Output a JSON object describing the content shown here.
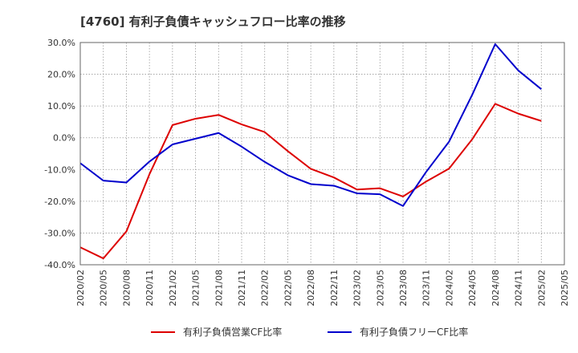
{
  "chart_data": {
    "type": "line",
    "title": "[4760]  有利子負債キャッシュフロー比率の推移",
    "xlabel": "",
    "ylabel": "",
    "ylim": [
      -40,
      30
    ],
    "y_ticks": [
      "30.0%",
      "20.0%",
      "10.0%",
      "0.0%",
      "-10.0%",
      "-20.0%",
      "-30.0%",
      "-40.0%"
    ],
    "x": [
      "2020/02",
      "2020/05",
      "2020/08",
      "2020/11",
      "2021/02",
      "2021/05",
      "2021/08",
      "2021/11",
      "2022/02",
      "2022/05",
      "2022/08",
      "2022/11",
      "2023/02",
      "2023/05",
      "2023/08",
      "2023/11",
      "2024/02",
      "2024/05",
      "2024/08",
      "2024/11",
      "2025/02",
      "2025/05"
    ],
    "grid": true,
    "legend_position": "bottom",
    "series": [
      {
        "name": "有利子負債営業CF比率",
        "color": "#dd0000",
        "values": [
          -34.5,
          -38.0,
          -29.5,
          -11.5,
          4.0,
          6.0,
          7.2,
          4.2,
          1.8,
          -4.2,
          -9.8,
          -12.5,
          -16.3,
          -15.9,
          -18.5,
          -13.8,
          -9.7,
          -0.5,
          10.7,
          7.6,
          5.3,
          null
        ]
      },
      {
        "name": "有利子負債フリーCF比率",
        "color": "#0000cc",
        "values": [
          -8.0,
          -13.5,
          -14.1,
          -7.5,
          -2.1,
          -0.3,
          1.5,
          -2.8,
          -7.6,
          -11.8,
          -14.6,
          -15.1,
          -17.5,
          -17.8,
          -21.5,
          -10.8,
          -1.2,
          13.5,
          29.5,
          21.2,
          15.3,
          null
        ]
      }
    ]
  }
}
